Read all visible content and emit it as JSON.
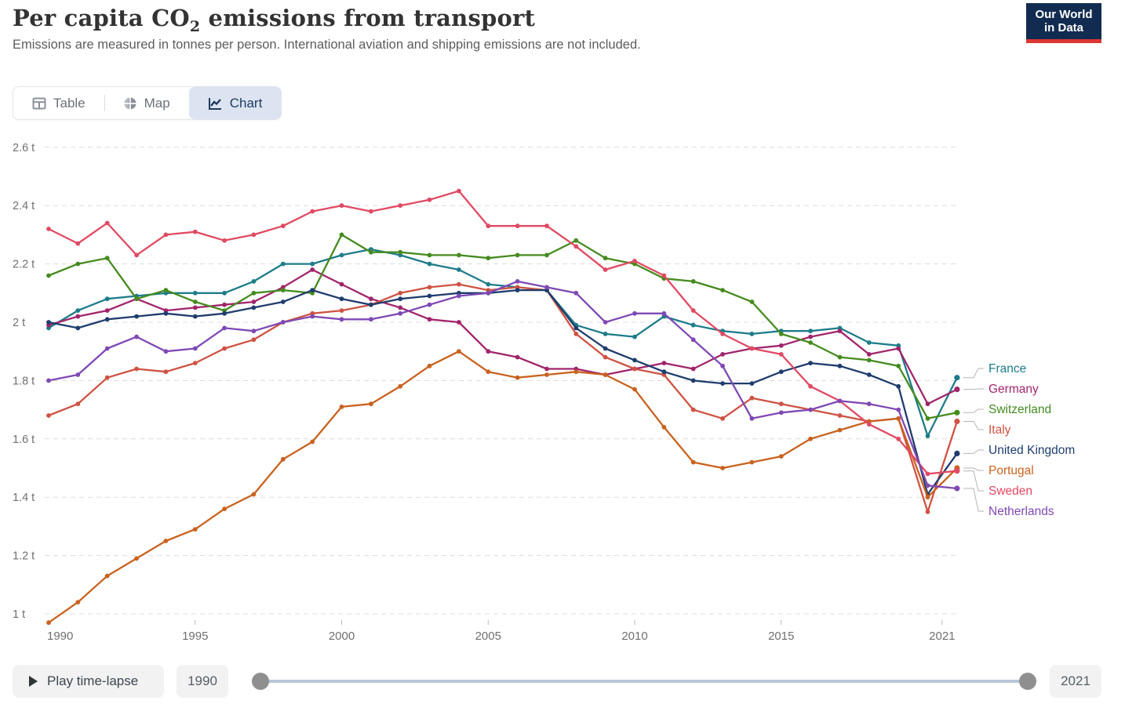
{
  "header": {
    "title_pre": "Per capita CO",
    "title_sub": "2",
    "title_post": " emissions from transport",
    "subtitle": "Emissions are measured in tonnes per person. International aviation and shipping emissions are not included."
  },
  "logo": {
    "line1": "Our World",
    "line2": "in Data",
    "bg_color": "#122b50",
    "bar_color": "#dc3732"
  },
  "tabs": [
    {
      "label": "Table",
      "icon": "table-icon",
      "active": false
    },
    {
      "label": "Map",
      "icon": "globe-icon",
      "active": false
    },
    {
      "label": "Chart",
      "icon": "line-chart-icon",
      "active": true
    }
  ],
  "ui_colors": {
    "active_tab_bg": "#dbe4f0",
    "active_tab_text": "#1f3a5e",
    "inactive_tab_text": "#6b7178",
    "gridline": "#dcdcdc",
    "axis_label": "#6f6f6f",
    "legend_connector": "#b5b5b5",
    "slider_track": "#b6c7d9",
    "slider_handle": "#8f8f8f"
  },
  "controls": {
    "play_label": "Play time-lapse",
    "start_year": "1990",
    "end_year": "2021"
  },
  "chart_data": {
    "type": "line",
    "title": "Per capita CO₂ emissions from transport",
    "xlabel": "",
    "ylabel": "tonnes per person",
    "ylim": [
      1.0,
      2.6
    ],
    "grid": true,
    "legend_position": "right-of-line-ends",
    "x": [
      1990,
      1991,
      1992,
      1993,
      1994,
      1995,
      1996,
      1997,
      1998,
      1999,
      2000,
      2001,
      2002,
      2003,
      2004,
      2005,
      2006,
      2007,
      2008,
      2009,
      2010,
      2011,
      2012,
      2013,
      2014,
      2015,
      2016,
      2017,
      2018,
      2019,
      2020,
      2021
    ],
    "x_ticks": [
      {
        "year": 1990,
        "label": "1990"
      },
      {
        "year": 1995,
        "label": "1995"
      },
      {
        "year": 2000,
        "label": "2000"
      },
      {
        "year": 2005,
        "label": "2005"
      },
      {
        "year": 2010,
        "label": "2010"
      },
      {
        "year": 2015,
        "label": "2015"
      },
      {
        "year": 2021,
        "label": "2021"
      }
    ],
    "y_ticks": [
      {
        "value": 2.6,
        "label": "2.6 t"
      },
      {
        "value": 2.4,
        "label": "2.4 t"
      },
      {
        "value": 2.2,
        "label": "2.2 t"
      },
      {
        "value": 2.0,
        "label": "2 t"
      },
      {
        "value": 1.8,
        "label": "1.8 t"
      },
      {
        "value": 1.6,
        "label": "1.6 t"
      },
      {
        "value": 1.4,
        "label": "1.4 t"
      },
      {
        "value": 1.2,
        "label": "1.2 t"
      },
      {
        "value": 1.0,
        "label": "1 t"
      }
    ],
    "series": [
      {
        "name": "France",
        "color": "#1d7c8a",
        "values": [
          1.98,
          2.04,
          2.08,
          2.09,
          2.1,
          2.1,
          2.1,
          2.14,
          2.2,
          2.2,
          2.23,
          2.25,
          2.23,
          2.2,
          2.18,
          2.13,
          2.12,
          2.11,
          1.99,
          1.96,
          1.95,
          2.02,
          1.99,
          1.97,
          1.96,
          1.97,
          1.97,
          1.98,
          1.93,
          1.92,
          1.61,
          1.81
        ]
      },
      {
        "name": "Germany",
        "color": "#a1256b",
        "values": [
          1.99,
          2.02,
          2.04,
          2.08,
          2.04,
          2.05,
          2.06,
          2.07,
          2.12,
          2.18,
          2.13,
          2.08,
          2.05,
          2.01,
          2.0,
          1.9,
          1.88,
          1.84,
          1.84,
          1.82,
          1.84,
          1.86,
          1.84,
          1.89,
          1.91,
          1.92,
          1.95,
          1.97,
          1.89,
          1.91,
          1.72,
          1.77
        ]
      },
      {
        "name": "Switzerland",
        "color": "#458b1f",
        "values": [
          2.16,
          2.2,
          2.22,
          2.08,
          2.11,
          2.07,
          2.04,
          2.1,
          2.11,
          2.1,
          2.3,
          2.24,
          2.24,
          2.23,
          2.23,
          2.22,
          2.23,
          2.23,
          2.28,
          2.22,
          2.2,
          2.15,
          2.14,
          2.11,
          2.07,
          1.96,
          1.93,
          1.88,
          1.87,
          1.85,
          1.67,
          1.69
        ]
      },
      {
        "name": "Italy",
        "color": "#cf5243",
        "values": [
          1.68,
          1.72,
          1.81,
          1.84,
          1.83,
          1.86,
          1.91,
          1.94,
          2.0,
          2.03,
          2.04,
          2.06,
          2.1,
          2.12,
          2.13,
          2.11,
          2.12,
          2.11,
          1.96,
          1.88,
          1.84,
          1.82,
          1.7,
          1.67,
          1.74,
          1.72,
          1.7,
          1.68,
          1.66,
          1.67,
          1.35,
          1.66
        ]
      },
      {
        "name": "United Kingdom",
        "color": "#1f3d6d",
        "values": [
          2.0,
          1.98,
          2.01,
          2.02,
          2.03,
          2.02,
          2.03,
          2.05,
          2.07,
          2.11,
          2.08,
          2.06,
          2.08,
          2.09,
          2.1,
          2.1,
          2.11,
          2.11,
          1.98,
          1.91,
          1.87,
          1.83,
          1.8,
          1.79,
          1.79,
          1.83,
          1.86,
          1.85,
          1.82,
          1.78,
          1.41,
          1.55
        ]
      },
      {
        "name": "Portugal",
        "color": "#c9621f",
        "values": [
          0.97,
          1.04,
          1.13,
          1.19,
          1.25,
          1.29,
          1.36,
          1.41,
          1.53,
          1.59,
          1.71,
          1.72,
          1.78,
          1.85,
          1.9,
          1.83,
          1.81,
          1.82,
          1.83,
          1.82,
          1.77,
          1.64,
          1.52,
          1.5,
          1.52,
          1.54,
          1.6,
          1.63,
          1.66,
          1.67,
          1.4,
          1.5
        ]
      },
      {
        "name": "Sweden",
        "color": "#e04a63",
        "values": [
          2.32,
          2.27,
          2.34,
          2.23,
          2.3,
          2.31,
          2.28,
          2.3,
          2.33,
          2.38,
          2.4,
          2.38,
          2.4,
          2.42,
          2.45,
          2.33,
          2.33,
          2.33,
          2.26,
          2.18,
          2.21,
          2.16,
          2.04,
          1.96,
          1.91,
          1.89,
          1.78,
          1.73,
          1.65,
          1.6,
          1.48,
          1.49
        ]
      },
      {
        "name": "Netherlands",
        "color": "#7e49b4",
        "values": [
          1.8,
          1.82,
          1.91,
          1.95,
          1.9,
          1.91,
          1.98,
          1.97,
          2.0,
          2.02,
          2.01,
          2.01,
          2.03,
          2.06,
          2.09,
          2.1,
          2.14,
          2.12,
          2.1,
          2.0,
          2.03,
          2.03,
          1.94,
          1.85,
          1.67,
          1.69,
          1.7,
          1.73,
          1.72,
          1.7,
          1.44,
          1.43
        ]
      }
    ]
  }
}
